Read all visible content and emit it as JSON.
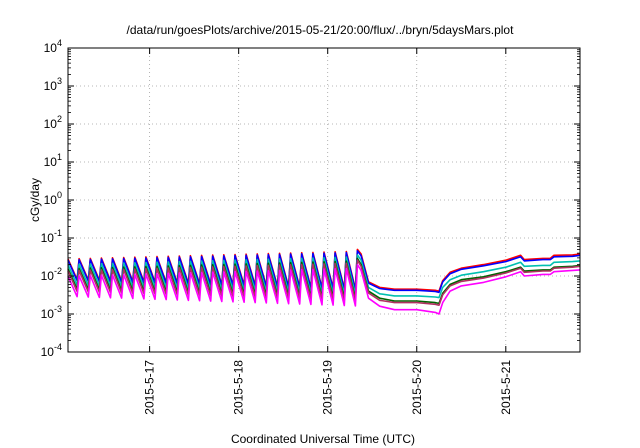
{
  "chart_data": {
    "type": "line",
    "title": "/data/run/goesPlots/archive/2015-05-21/20:00/flux/../bryn/5daysMars.plot",
    "xlabel": "Coordinated Universal Time (UTC)",
    "ylabel": "cGy/day",
    "y_scale": "log",
    "ylim": [
      0.0001,
      10000
    ],
    "xlim": [
      "2015-05-16 02:00",
      "2015-05-21 20:00"
    ],
    "grid": true,
    "legend": "none",
    "y_ticks": [
      {
        "value": 0.0001,
        "base": "10",
        "exp": "-4"
      },
      {
        "value": 0.001,
        "base": "10",
        "exp": "-3"
      },
      {
        "value": 0.01,
        "base": "10",
        "exp": "-2"
      },
      {
        "value": 0.1,
        "base": "10",
        "exp": "-1"
      },
      {
        "value": 1,
        "base": "10",
        "exp": "0"
      },
      {
        "value": 10,
        "base": "10",
        "exp": "1"
      },
      {
        "value": 100,
        "base": "10",
        "exp": "2"
      },
      {
        "value": 1000,
        "base": "10",
        "exp": "3"
      },
      {
        "value": 10000,
        "base": "10",
        "exp": "4"
      }
    ],
    "x_ticks": [
      {
        "value": "2015-05-17 00:00",
        "label": "2015-5-17"
      },
      {
        "value": "2015-05-18 00:00",
        "label": "2015-5-18"
      },
      {
        "value": "2015-05-19 00:00",
        "label": "2015-5-19"
      },
      {
        "value": "2015-05-20 00:00",
        "label": "2015-5-20"
      },
      {
        "value": "2015-05-21 00:00",
        "label": "2015-5-21"
      }
    ],
    "sawtooth_phase": {
      "end": "2015-05-19 08:00",
      "period_hours": 3,
      "points": [
        [
          "2015-05-16 02:00",
          0.028,
          0.005
        ],
        [
          "2015-05-19 08:00",
          0.045,
          0.0028
        ]
      ]
    },
    "series": [
      {
        "color": "#ff0000",
        "sawtooth": [
          0.045,
          0.0045
        ],
        "points": [
          [
            "2015-05-19 08:00",
            0.05
          ],
          [
            "2015-05-19 09:00",
            0.038
          ],
          [
            "2015-05-19 11:00",
            0.007
          ],
          [
            "2015-05-19 14:00",
            0.005
          ],
          [
            "2015-05-19 18:00",
            0.0045
          ],
          [
            "2015-05-20 00:00",
            0.0045
          ],
          [
            "2015-05-20 05:00",
            0.0042
          ],
          [
            "2015-05-20 06:00",
            0.004
          ],
          [
            "2015-05-20 07:00",
            0.0075
          ],
          [
            "2015-05-20 09:00",
            0.0125
          ],
          [
            "2015-05-20 12:00",
            0.016
          ],
          [
            "2015-05-20 18:00",
            0.02
          ],
          [
            "2015-05-21 00:00",
            0.026
          ],
          [
            "2015-05-21 04:00",
            0.035
          ],
          [
            "2015-05-21 05:00",
            0.027
          ],
          [
            "2015-05-21 10:00",
            0.029
          ],
          [
            "2015-05-21 12:00",
            0.029
          ],
          [
            "2015-05-21 13:00",
            0.035
          ],
          [
            "2015-05-21 18:00",
            0.036
          ],
          [
            "2015-05-21 20:00",
            0.038
          ]
        ]
      },
      {
        "color": "#0000ff",
        "sawtooth": [
          0.042,
          0.0042
        ],
        "points": [
          [
            "2015-05-19 08:00",
            0.046
          ],
          [
            "2015-05-19 09:00",
            0.034
          ],
          [
            "2015-05-19 11:00",
            0.0065
          ],
          [
            "2015-05-19 14:00",
            0.0047
          ],
          [
            "2015-05-19 18:00",
            0.0042
          ],
          [
            "2015-05-20 00:00",
            0.0042
          ],
          [
            "2015-05-20 05:00",
            0.0039
          ],
          [
            "2015-05-20 06:00",
            0.0037
          ],
          [
            "2015-05-20 07:00",
            0.007
          ],
          [
            "2015-05-20 09:00",
            0.0115
          ],
          [
            "2015-05-20 12:00",
            0.015
          ],
          [
            "2015-05-20 18:00",
            0.0185
          ],
          [
            "2015-05-21 00:00",
            0.024
          ],
          [
            "2015-05-21 04:00",
            0.032
          ],
          [
            "2015-05-21 05:00",
            0.025
          ],
          [
            "2015-05-21 10:00",
            0.027
          ],
          [
            "2015-05-21 12:00",
            0.027
          ],
          [
            "2015-05-21 13:00",
            0.032
          ],
          [
            "2015-05-21 18:00",
            0.033
          ],
          [
            "2015-05-21 20:00",
            0.035
          ]
        ]
      },
      {
        "color": "#00c0b0",
        "sawtooth": [
          0.032,
          0.0032
        ],
        "points": [
          [
            "2015-05-19 08:00",
            0.036
          ],
          [
            "2015-05-19 09:00",
            0.026
          ],
          [
            "2015-05-19 11:00",
            0.005
          ],
          [
            "2015-05-19 14:00",
            0.0034
          ],
          [
            "2015-05-19 18:00",
            0.003
          ],
          [
            "2015-05-20 00:00",
            0.003
          ],
          [
            "2015-05-20 05:00",
            0.0028
          ],
          [
            "2015-05-20 06:00",
            0.0027
          ],
          [
            "2015-05-20 07:00",
            0.005
          ],
          [
            "2015-05-20 09:00",
            0.008
          ],
          [
            "2015-05-20 12:00",
            0.0105
          ],
          [
            "2015-05-20 18:00",
            0.013
          ],
          [
            "2015-05-21 00:00",
            0.017
          ],
          [
            "2015-05-21 04:00",
            0.023
          ],
          [
            "2015-05-21 05:00",
            0.018
          ],
          [
            "2015-05-21 10:00",
            0.019
          ],
          [
            "2015-05-21 12:00",
            0.019
          ],
          [
            "2015-05-21 13:00",
            0.023
          ],
          [
            "2015-05-21 18:00",
            0.024
          ],
          [
            "2015-05-21 20:00",
            0.025
          ]
        ]
      },
      {
        "color": "#006400",
        "sawtooth": [
          0.025,
          0.0025
        ],
        "points": [
          [
            "2015-05-19 08:00",
            0.029
          ],
          [
            "2015-05-19 09:00",
            0.02
          ],
          [
            "2015-05-19 11:00",
            0.004
          ],
          [
            "2015-05-19 14:00",
            0.0026
          ],
          [
            "2015-05-19 18:00",
            0.0022
          ],
          [
            "2015-05-20 00:00",
            0.0022
          ],
          [
            "2015-05-20 05:00",
            0.002
          ],
          [
            "2015-05-20 06:00",
            0.0019
          ],
          [
            "2015-05-20 07:00",
            0.0035
          ],
          [
            "2015-05-20 09:00",
            0.006
          ],
          [
            "2015-05-20 12:00",
            0.008
          ],
          [
            "2015-05-20 18:00",
            0.0095
          ],
          [
            "2015-05-21 00:00",
            0.013
          ],
          [
            "2015-05-21 04:00",
            0.017
          ],
          [
            "2015-05-21 05:00",
            0.0135
          ],
          [
            "2015-05-21 10:00",
            0.0145
          ],
          [
            "2015-05-21 12:00",
            0.0145
          ],
          [
            "2015-05-21 13:00",
            0.017
          ],
          [
            "2015-05-21 18:00",
            0.018
          ],
          [
            "2015-05-21 20:00",
            0.019
          ]
        ]
      },
      {
        "color": "#b03060",
        "sawtooth": [
          0.022,
          0.0022
        ],
        "points": [
          [
            "2015-05-19 08:00",
            0.026
          ],
          [
            "2015-05-19 09:00",
            0.018
          ],
          [
            "2015-05-19 11:00",
            0.0036
          ],
          [
            "2015-05-19 14:00",
            0.0023
          ],
          [
            "2015-05-19 18:00",
            0.002
          ],
          [
            "2015-05-20 00:00",
            0.002
          ],
          [
            "2015-05-20 05:00",
            0.0018
          ],
          [
            "2015-05-20 06:00",
            0.0017
          ],
          [
            "2015-05-20 07:00",
            0.0032
          ],
          [
            "2015-05-20 09:00",
            0.0055
          ],
          [
            "2015-05-20 12:00",
            0.0072
          ],
          [
            "2015-05-20 18:00",
            0.0088
          ],
          [
            "2015-05-21 00:00",
            0.012
          ],
          [
            "2015-05-21 04:00",
            0.016
          ],
          [
            "2015-05-21 05:00",
            0.0125
          ],
          [
            "2015-05-21 10:00",
            0.0135
          ],
          [
            "2015-05-21 12:00",
            0.0135
          ],
          [
            "2015-05-21 13:00",
            0.016
          ],
          [
            "2015-05-21 18:00",
            0.017
          ],
          [
            "2015-05-21 20:00",
            0.018
          ]
        ]
      },
      {
        "color": "#ff00ff",
        "sawtooth": [
          0.016,
          0.0016
        ],
        "points": [
          [
            "2015-05-19 08:00",
            0.02
          ],
          [
            "2015-05-19 09:00",
            0.014
          ],
          [
            "2015-05-19 11:00",
            0.0026
          ],
          [
            "2015-05-19 14:00",
            0.0016
          ],
          [
            "2015-05-19 18:00",
            0.0013
          ],
          [
            "2015-05-20 00:00",
            0.0013
          ],
          [
            "2015-05-20 05:00",
            0.0011
          ],
          [
            "2015-05-20 06:00",
            0.001
          ],
          [
            "2015-05-20 07:00",
            0.002
          ],
          [
            "2015-05-20 09:00",
            0.004
          ],
          [
            "2015-05-20 12:00",
            0.0055
          ],
          [
            "2015-05-20 18:00",
            0.0068
          ],
          [
            "2015-05-21 00:00",
            0.0095
          ],
          [
            "2015-05-21 04:00",
            0.013
          ],
          [
            "2015-05-21 05:00",
            0.01
          ],
          [
            "2015-05-21 10:00",
            0.011
          ],
          [
            "2015-05-21 12:00",
            0.011
          ],
          [
            "2015-05-21 13:00",
            0.013
          ],
          [
            "2015-05-21 18:00",
            0.014
          ],
          [
            "2015-05-21 20:00",
            0.0145
          ]
        ]
      }
    ]
  }
}
